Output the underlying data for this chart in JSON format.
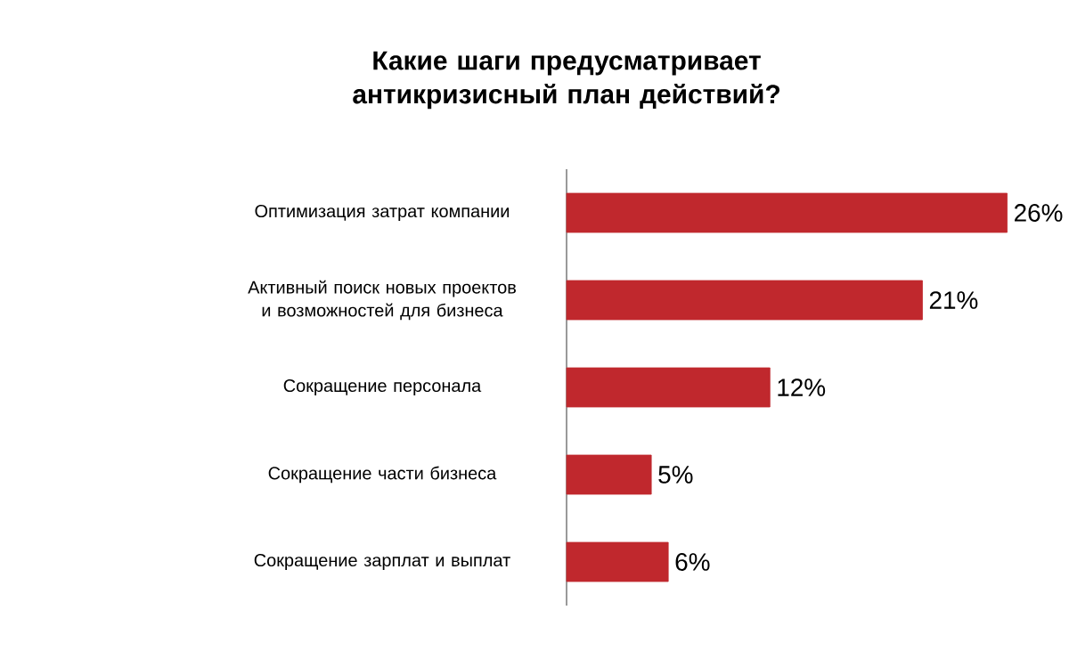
{
  "chart_data": {
    "type": "bar",
    "orientation": "horizontal",
    "title": "Какие шаги предусматривает антикризисный план действий?",
    "categories": [
      "Оптимизация затрат компании",
      "Активный поиск новых проектов и возможностей для бизнеса",
      "Сокращение персонала",
      "Сокращение  части бизнеса",
      "Сокращение зарплат и выплат"
    ],
    "values": [
      26,
      21,
      12,
      5,
      6
    ],
    "value_labels": [
      "26%",
      "21%",
      "12%",
      "5%",
      "6%"
    ],
    "color": "#c0282d"
  }
}
